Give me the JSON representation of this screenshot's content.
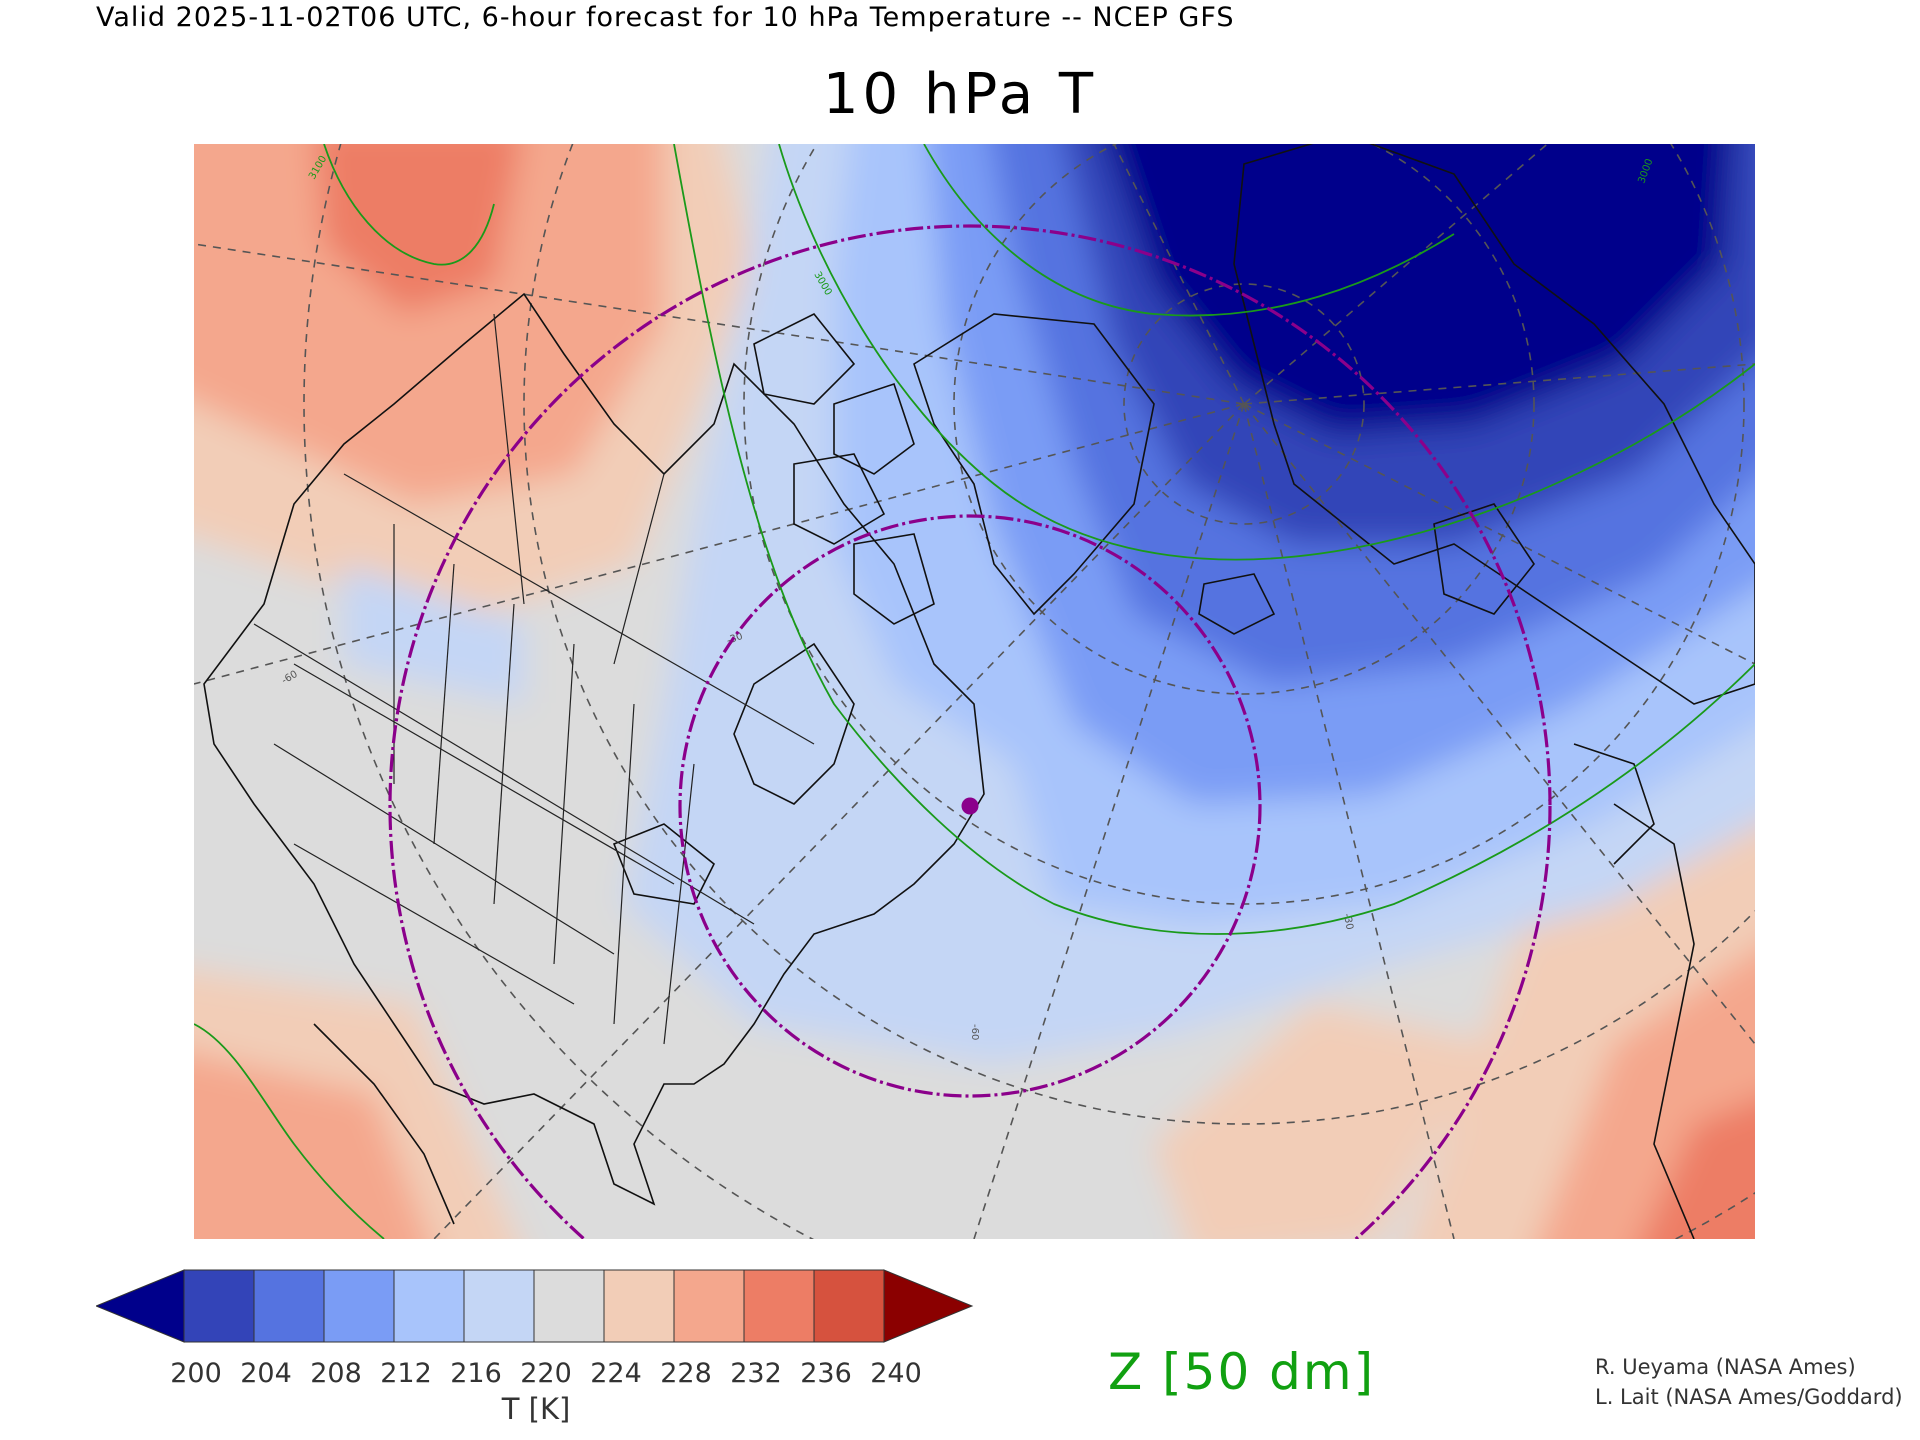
{
  "header": {
    "valid_line": "Valid 2025-11-02T06 UTC, 6-hour forecast for 10 hPa Temperature -- NCEP GFS",
    "title": "10 hPa T"
  },
  "map": {
    "projection": "polar stereographic",
    "field": "10 hPa temperature",
    "contour_field": "geopotential height",
    "contour_labels": [
      "3100",
      "3000",
      "3000",
      "-60",
      "-30",
      "-60",
      "-30"
    ],
    "marker": "purple-dot",
    "colors": {
      "coldest": "#00008b",
      "cold": "#3344b8",
      "cool": "#5573e0",
      "mild_cool": "#7a9cf5",
      "pale_blue": "#a8c4fb",
      "lightest_blue": "#c4d6f5",
      "neutral": "#dcdcdc",
      "pale_salmon": "#f2cdb7",
      "salmon": "#f4a78d",
      "orange_red": "#ed7d65",
      "red": "#d6523e",
      "contour_green": "#1a9a1a",
      "ring_purple": "#8b008b"
    }
  },
  "colorbar": {
    "ticks": [
      "200",
      "204",
      "208",
      "212",
      "216",
      "220",
      "224",
      "228",
      "232",
      "236",
      "240"
    ],
    "colors": [
      "#00008b",
      "#3344b8",
      "#5573e0",
      "#7a9cf5",
      "#a8c4fb",
      "#c4d6f5",
      "#dcdcdc",
      "#f2cdb7",
      "#f4a78d",
      "#ed7d65",
      "#d6523e",
      "#8b0000"
    ],
    "label": "T [K]"
  },
  "contour_legend": "Z [50 dm]",
  "credits": [
    "R. Ueyama (NASA Ames)",
    "L. Lait (NASA Ames/Goddard)"
  ]
}
